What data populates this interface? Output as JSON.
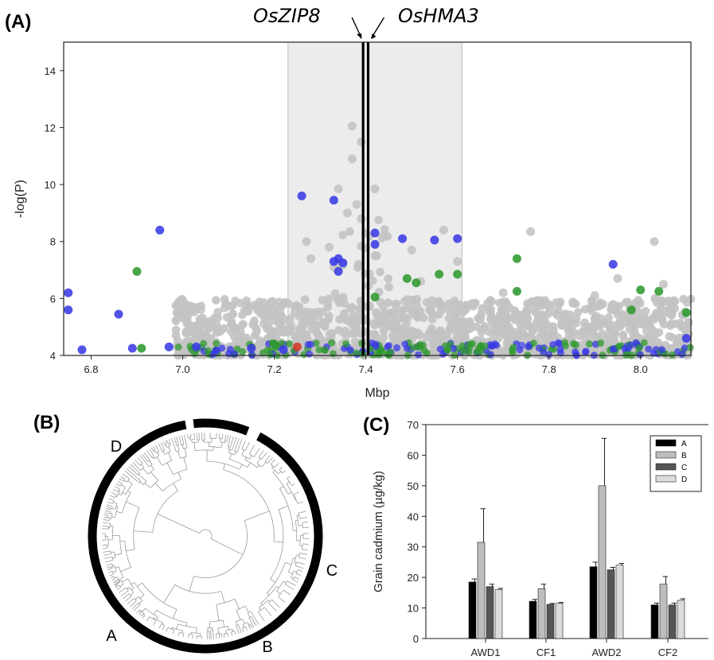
{
  "panels": {
    "a_label": "(A)",
    "b_label": "(B)",
    "c_label": "(C)"
  },
  "genes": {
    "left": "OsZIP8",
    "right": "OsHMA3"
  },
  "colors": {
    "gray_points": "#c3c3c3",
    "blue_points": "#3a3ae6",
    "green_points": "#2f9a2f",
    "red_points": "#d23a2a",
    "shade": "#ececec",
    "bar_A": "#000000",
    "bar_B": "#bdbdbd",
    "bar_C": "#555555",
    "bar_D": "#dcdcdc"
  },
  "chart_data": [
    {
      "type": "scatter",
      "panel": "A",
      "xlabel": "Mbp",
      "ylabel": "-log(P)",
      "xlim": [
        6.74,
        8.11
      ],
      "ylim": [
        4,
        15
      ],
      "xticks": [
        "6.8",
        "7.0",
        "7.2",
        "7.4",
        "7.6",
        "7.8",
        "8.0"
      ],
      "yticks": [
        "4",
        "6",
        "8",
        "10",
        "12",
        "14"
      ],
      "grid": false,
      "shaded_region": [
        7.23,
        7.61
      ],
      "gene_lines": [
        7.394,
        7.405
      ],
      "points": {
        "gray": [
          [
            7.37,
            12.05
          ],
          [
            7.39,
            11.5
          ],
          [
            7.37,
            10.9
          ],
          [
            7.34,
            9.85
          ],
          [
            7.42,
            9.85
          ],
          [
            7.38,
            9.3
          ],
          [
            7.57,
            8.4
          ],
          [
            7.76,
            8.35
          ],
          [
            8.03,
            8.0
          ],
          [
            7.27,
            8.0
          ],
          [
            7.32,
            7.8
          ],
          [
            7.5,
            7.7
          ],
          [
            7.28,
            7.4
          ],
          [
            7.6,
            7.3
          ],
          [
            7.95,
            6.7
          ],
          [
            8.05,
            6.5
          ],
          [
            7.45,
            6.4
          ],
          [
            7.52,
            6.6
          ],
          [
            7.7,
            6.2
          ],
          [
            7.9,
            6.1
          ],
          [
            7.42,
            7.5
          ],
          [
            7.39,
            8.8
          ],
          [
            7.4,
            8.3
          ],
          [
            7.36,
            9.0
          ],
          [
            7.33,
            7.1
          ]
        ],
        "blue": [
          [
            6.75,
            6.2
          ],
          [
            6.75,
            5.6
          ],
          [
            6.78,
            4.2
          ],
          [
            6.86,
            5.45
          ],
          [
            6.89,
            4.25
          ],
          [
            6.95,
            8.4
          ],
          [
            6.97,
            4.3
          ],
          [
            7.26,
            9.6
          ],
          [
            7.33,
            9.45
          ],
          [
            7.42,
            8.3
          ],
          [
            7.42,
            7.9
          ],
          [
            7.48,
            8.1
          ],
          [
            7.55,
            8.05
          ],
          [
            7.6,
            8.1
          ],
          [
            7.94,
            7.2
          ],
          [
            7.34,
            7.4
          ],
          [
            7.33,
            7.3
          ],
          [
            7.34,
            6.95
          ],
          [
            7.35,
            7.25
          ],
          [
            8.1,
            4.6
          ],
          [
            7.03,
            4.3
          ],
          [
            7.15,
            4.25
          ],
          [
            7.22,
            4.2
          ]
        ],
        "green": [
          [
            6.9,
            6.95
          ],
          [
            6.91,
            4.25
          ],
          [
            7.73,
            7.4
          ],
          [
            7.49,
            6.7
          ],
          [
            7.51,
            6.55
          ],
          [
            7.56,
            6.85
          ],
          [
            7.6,
            6.85
          ],
          [
            8.04,
            6.25
          ],
          [
            8.1,
            5.5
          ],
          [
            7.73,
            6.25
          ],
          [
            8.0,
            6.3
          ],
          [
            7.98,
            5.6
          ],
          [
            7.42,
            6.05
          ],
          [
            7.2,
            4.4
          ]
        ],
        "red": [
          [
            7.25,
            4.3
          ]
        ]
      }
    },
    {
      "type": "bar",
      "panel": "C",
      "ylabel": "Grain cadmium (µg/kg)",
      "xlabel": "",
      "ylim": [
        0,
        70
      ],
      "yticks": [
        "0",
        "10",
        "20",
        "30",
        "40",
        "50",
        "60",
        "70"
      ],
      "categories": [
        "AWD1",
        "CF1",
        "AWD2",
        "CF2"
      ],
      "legend_position": "top-right",
      "series": [
        {
          "name": "A",
          "values": [
            18.5,
            12.2,
            23.5,
            11.0
          ],
          "errors": [
            1.0,
            0.6,
            1.5,
            0.6
          ]
        },
        {
          "name": "B",
          "values": [
            31.5,
            16.3,
            50.0,
            17.8
          ],
          "errors": [
            11.0,
            1.5,
            15.5,
            2.5
          ]
        },
        {
          "name": "C",
          "values": [
            17.0,
            11.2,
            22.5,
            11.0
          ],
          "errors": [
            0.8,
            0.3,
            0.8,
            0.6
          ]
        },
        {
          "name": "D",
          "values": [
            16.0,
            11.5,
            24.0,
            12.5
          ],
          "errors": [
            0.4,
            0.3,
            0.6,
            0.5
          ]
        }
      ]
    }
  ],
  "dendrogram": {
    "clades": [
      {
        "name": "A",
        "from_deg": 152,
        "to_deg": 260
      },
      {
        "name": "B",
        "from_deg": 264,
        "to_deg": 292
      },
      {
        "name": "C",
        "from_deg": 298,
        "to_deg": 386
      },
      {
        "name": "D",
        "from_deg": 386,
        "to_deg": 512
      }
    ]
  }
}
